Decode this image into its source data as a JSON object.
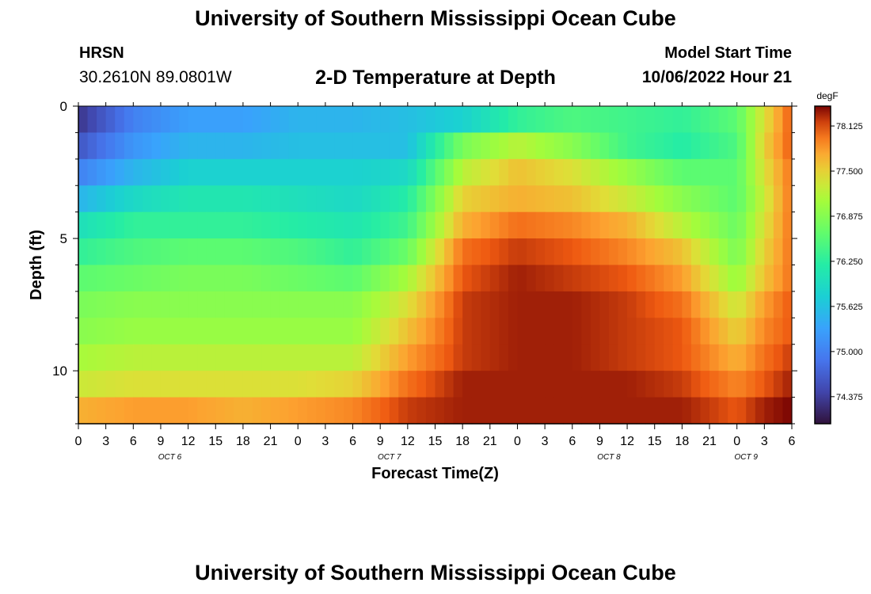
{
  "header": {
    "title": "University of Southern Mississippi Ocean Cube",
    "station": "HRSN",
    "coordinates": "30.2610N  89.0801W",
    "subtitle": "2-D Temperature at Depth",
    "model_start_label": "Model Start Time",
    "model_start_value": "10/06/2022 Hour 21"
  },
  "footer": {
    "title": "University of Southern Mississippi Ocean Cube"
  },
  "chart_data": {
    "type": "heatmap",
    "title": "2-D Temperature at Depth",
    "xlabel": "Forecast Time(Z)",
    "ylabel": "Depth (ft)",
    "x_tick_labels": [
      "0",
      "3",
      "6",
      "9",
      "12",
      "15",
      "18",
      "21",
      "0",
      "3",
      "6",
      "9",
      "12",
      "15",
      "18",
      "21",
      "0",
      "3",
      "6",
      "9",
      "12",
      "15",
      "18",
      "21",
      "0",
      "3",
      "6"
    ],
    "x_day_labels": [
      "OCT 6",
      "OCT 7",
      "OCT 8",
      "OCT 9"
    ],
    "x_day_label_hours": [
      10,
      34,
      58,
      73
    ],
    "xlim_hours": [
      0,
      78
    ],
    "y_tick_labels": [
      "0",
      "5",
      "10"
    ],
    "y_tick_values": [
      0,
      5,
      10
    ],
    "ylim": [
      0,
      12
    ],
    "y_reversed": true,
    "colorbar": {
      "unit": "degF",
      "tick_labels": [
        "78.125",
        "77.500",
        "76.875",
        "76.250",
        "75.625",
        "75.000",
        "74.375"
      ],
      "tick_values": [
        78.125,
        77.5,
        76.875,
        76.25,
        75.625,
        75.0,
        74.375
      ],
      "range": [
        74.0,
        78.4
      ]
    },
    "depth_rows_ft": [
      0.5,
      1.5,
      2.5,
      3.5,
      4.5,
      5.5,
      6.5,
      7.5,
      8.5,
      9.5,
      10.5,
      11.5
    ],
    "time_knots_hours": [
      0,
      6,
      12,
      18,
      24,
      30,
      36,
      42,
      48,
      54,
      60,
      66,
      72,
      75,
      78
    ],
    "temperature_degF": [
      [
        74.3,
        75.0,
        75.3,
        75.3,
        75.5,
        75.5,
        75.6,
        75.8,
        76.3,
        76.5,
        76.4,
        76.3,
        76.6,
        77.4,
        78.1
      ],
      [
        74.6,
        75.2,
        75.5,
        75.5,
        75.6,
        75.6,
        75.6,
        76.8,
        77.2,
        76.9,
        76.4,
        76.2,
        76.5,
        77.5,
        78.1
      ],
      [
        75.0,
        75.5,
        75.8,
        75.8,
        75.8,
        75.8,
        75.9,
        77.2,
        77.6,
        77.4,
        77.0,
        76.6,
        76.6,
        77.4,
        78.0
      ],
      [
        75.5,
        75.9,
        76.1,
        76.1,
        76.0,
        75.9,
        76.2,
        77.5,
        77.7,
        77.6,
        77.3,
        76.9,
        76.6,
        77.3,
        78.0
      ],
      [
        76.0,
        76.3,
        76.3,
        76.3,
        76.2,
        76.1,
        76.4,
        77.7,
        78.0,
        77.9,
        77.7,
        77.2,
        76.7,
        77.4,
        78.0
      ],
      [
        76.3,
        76.5,
        76.6,
        76.6,
        76.5,
        76.3,
        76.7,
        78.0,
        78.2,
        78.1,
        77.9,
        77.6,
        76.8,
        77.5,
        78.0
      ],
      [
        76.6,
        76.7,
        76.8,
        76.8,
        76.7,
        76.6,
        77.1,
        78.1,
        78.3,
        78.2,
        78.1,
        77.8,
        77.0,
        77.6,
        78.0
      ],
      [
        76.8,
        76.9,
        76.9,
        76.9,
        76.9,
        76.9,
        77.4,
        78.2,
        78.3,
        78.3,
        78.2,
        78.0,
        77.3,
        77.8,
        78.1
      ],
      [
        76.9,
        77.0,
        77.0,
        77.0,
        77.0,
        77.0,
        77.6,
        78.2,
        78.3,
        78.3,
        78.2,
        78.1,
        77.5,
        77.9,
        78.1
      ],
      [
        77.1,
        77.2,
        77.2,
        77.2,
        77.2,
        77.2,
        77.8,
        78.2,
        78.3,
        78.3,
        78.2,
        78.1,
        77.7,
        78.0,
        78.2
      ],
      [
        77.3,
        77.4,
        77.4,
        77.4,
        77.4,
        77.5,
        78.0,
        78.3,
        78.3,
        78.3,
        78.3,
        78.2,
        77.9,
        78.1,
        78.3
      ],
      [
        77.7,
        77.8,
        77.8,
        77.7,
        77.8,
        77.9,
        78.2,
        78.3,
        78.3,
        78.3,
        78.3,
        78.3,
        78.1,
        78.3,
        78.4
      ]
    ]
  }
}
